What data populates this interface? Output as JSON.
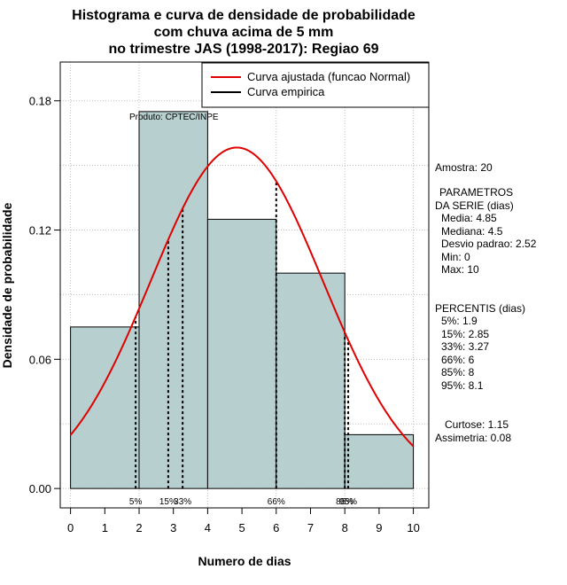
{
  "chart_data": {
    "type": "bar",
    "title_lines": [
      "Histograma e curva de densidade de probabilidade",
      "com chuva acima de 5 mm",
      "no trimestre JAS (1998-2017): Regiao 69"
    ],
    "xlabel": "Numero de dias",
    "ylabel": "Densidade de probabilidade",
    "xlim": [
      -0.3,
      10.45
    ],
    "ylim": [
      -0.009,
      0.198
    ],
    "x_ticks": [
      "0",
      "1",
      "2",
      "3",
      "4",
      "5",
      "6",
      "7",
      "8",
      "9",
      "10"
    ],
    "y_ticks": [
      "0.00",
      "0.06",
      "0.12",
      "0.18"
    ],
    "bins": [
      {
        "x0": 0,
        "x1": 2,
        "value": 0.075
      },
      {
        "x0": 2,
        "x1": 4,
        "value": 0.175
      },
      {
        "x0": 4,
        "x1": 6,
        "value": 0.125
      },
      {
        "x0": 6,
        "x1": 8,
        "value": 0.1
      },
      {
        "x0": 8,
        "x1": 10,
        "value": 0.025
      }
    ],
    "normal_curve": {
      "name": "Curva ajustada (funcao Normal)",
      "mean": 4.85,
      "sd": 2.52,
      "color": "#e00000"
    },
    "empirical_curve": {
      "name": "Curva empirica",
      "color": "#000000"
    },
    "percentile_lines": [
      {
        "label": "5%",
        "x": 1.9
      },
      {
        "label": "15%",
        "x": 2.85
      },
      {
        "label": "33%",
        "x": 3.27
      },
      {
        "label": "66%",
        "x": 6
      },
      {
        "label": "85%",
        "x": 8
      },
      {
        "label": "95%",
        "x": 8.1
      }
    ],
    "bar_color": "#b7cfcf",
    "grid": true,
    "legend_position": "top-right"
  },
  "product_label": "Produto: CPTEC/INPE",
  "side_panel": {
    "sample": "Amostra: 20",
    "params_header_1": "PARAMETROS",
    "params_header_2": "DA SERIE (dias)",
    "media": "Media: 4.85",
    "mediana": "Mediana: 4.5",
    "desvio": "Desvio padrao: 2.52",
    "min": "Min: 0",
    "max": "Max: 10",
    "percentis_header": "PERCENTIS (dias)",
    "p5": "5%: 1.9",
    "p15": "15%: 2.85",
    "p33": "33%: 3.27",
    "p66": "66%: 6",
    "p85": "85%: 8",
    "p95": "95%: 8.1",
    "curtose": "Curtose: 1.15",
    "assimetria": "Assimetria: 0.08"
  }
}
